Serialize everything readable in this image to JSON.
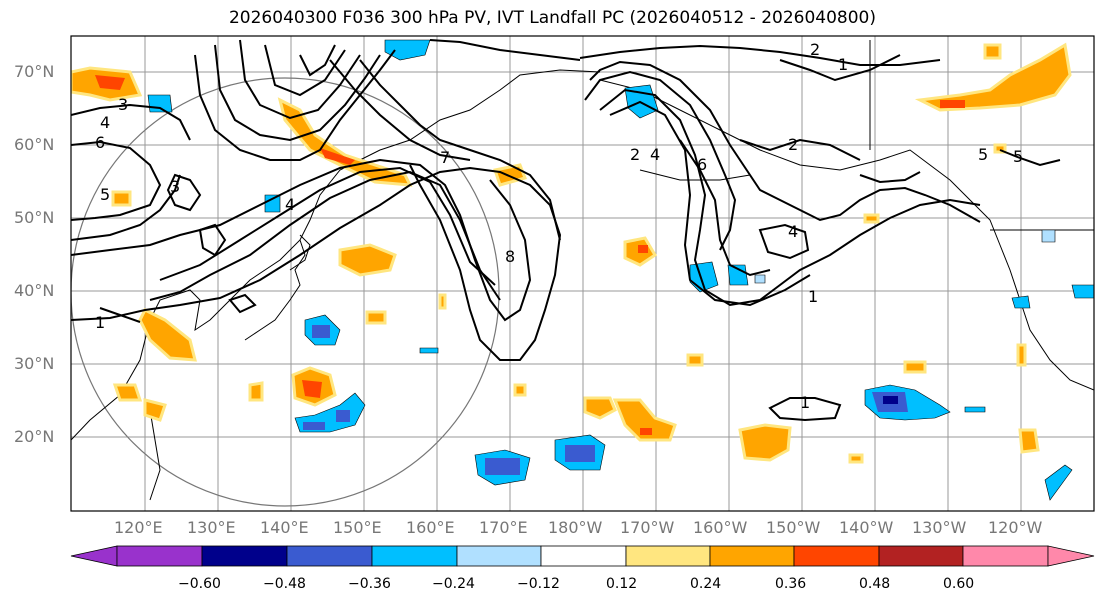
{
  "title": "2026040300 F036 300 hPa PV, IVT Landfall PC (2026040512 - 2026040800)",
  "lat_labels": [
    "70°N",
    "60°N",
    "50°N",
    "40°N",
    "30°N",
    "20°N"
  ],
  "lon_labels": [
    "120°E",
    "130°E",
    "140°E",
    "150°E",
    "160°E",
    "170°E",
    "180°W",
    "170°W",
    "160°W",
    "150°W",
    "140°W",
    "130°W",
    "120°W"
  ],
  "colorbar": {
    "ticks": [
      "−0.60",
      "−0.48",
      "−0.36",
      "−0.24",
      "−0.12",
      "0.12",
      "0.24",
      "0.36",
      "0.48",
      "0.60"
    ],
    "colors": [
      "#9932cc",
      "#00008b",
      "#3a5bd0",
      "#00bfff",
      "#b0e0ff",
      "#ffffff",
      "#ffe680",
      "#ffa500",
      "#ff4500",
      "#b22222",
      "#ff88aa"
    ]
  },
  "contour_labels": [
    "1",
    "2",
    "3",
    "4",
    "5",
    "6",
    "7",
    "8",
    "1",
    "2",
    "4",
    "6",
    "4",
    "1",
    "2",
    "5",
    "5",
    "4",
    "1",
    "3"
  ]
}
